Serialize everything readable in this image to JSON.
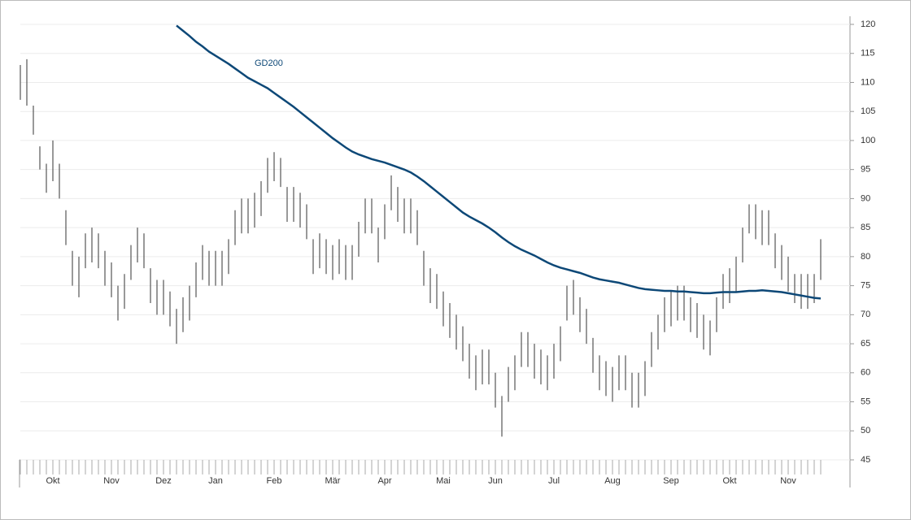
{
  "chart_data": {
    "type": "ohlc",
    "categories": [
      null,
      null,
      null,
      null,
      null,
      "Okt",
      null,
      null,
      null,
      null,
      null,
      null,
      null,
      null,
      "Nov",
      null,
      null,
      null,
      null,
      null,
      null,
      null,
      "Dez",
      null,
      null,
      null,
      null,
      null,
      null,
      null,
      "Jan",
      null,
      null,
      null,
      null,
      null,
      null,
      null,
      null,
      "Feb",
      null,
      null,
      null,
      null,
      null,
      null,
      null,
      null,
      "Mär",
      null,
      null,
      null,
      null,
      null,
      null,
      null,
      "Apr",
      null,
      null,
      null,
      null,
      null,
      null,
      null,
      null,
      "Mai",
      null,
      null,
      null,
      null,
      null,
      null,
      null,
      "Jun",
      null,
      null,
      null,
      null,
      null,
      null,
      null,
      null,
      "Jul",
      null,
      null,
      null,
      null,
      null,
      null,
      null,
      null,
      "Aug",
      null,
      null,
      null,
      null,
      null,
      null,
      null,
      null,
      "Sep",
      null,
      null,
      null,
      null,
      null,
      null,
      null,
      null,
      "Okt",
      null,
      null,
      null,
      null,
      null,
      null,
      null,
      null,
      "Nov",
      null,
      null,
      null,
      null,
      null
    ],
    "series": [
      {
        "color": "#333333",
        "high": [
          113,
          114,
          106,
          99,
          96,
          100,
          96,
          88,
          81,
          80,
          84,
          85,
          84,
          81,
          79,
          75,
          77,
          82,
          85,
          84,
          78,
          76,
          76,
          74,
          71,
          73,
          75,
          79,
          82,
          81,
          81,
          81,
          83,
          88,
          90,
          90,
          91,
          93,
          97,
          98,
          97,
          92,
          92,
          91,
          89,
          83,
          84,
          83,
          82,
          83,
          82,
          82,
          86,
          90,
          90,
          85,
          89,
          94,
          92,
          90,
          90,
          88,
          81,
          78,
          77,
          74,
          72,
          70,
          68,
          65,
          63,
          64,
          64,
          60,
          56,
          61,
          63,
          67,
          67,
          65,
          64,
          63,
          65,
          68,
          75,
          76,
          73,
          71,
          66,
          63,
          62,
          61,
          63,
          63,
          60,
          60,
          62,
          67,
          70,
          73,
          74,
          75,
          75,
          73,
          72,
          70,
          69,
          73,
          77,
          78,
          80,
          85,
          89,
          89,
          88,
          88,
          84,
          82,
          80,
          77,
          77,
          77,
          77,
          83
        ],
        "low": [
          107,
          106,
          101,
          95,
          91,
          93,
          90,
          82,
          75,
          73,
          78,
          79,
          78,
          75,
          73,
          69,
          71,
          76,
          79,
          78,
          72,
          70,
          70,
          68,
          65,
          67,
          69,
          73,
          76,
          75,
          75,
          75,
          77,
          82,
          84,
          84,
          85,
          87,
          91,
          93,
          92,
          86,
          86,
          85,
          83,
          77,
          78,
          77,
          76,
          77,
          76,
          76,
          80,
          84,
          84,
          79,
          83,
          88,
          86,
          84,
          84,
          82,
          75,
          72,
          71,
          68,
          66,
          64,
          62,
          59,
          57,
          58,
          58,
          54,
          49,
          55,
          57,
          61,
          61,
          59,
          58,
          57,
          59,
          62,
          69,
          70,
          67,
          65,
          60,
          57,
          56,
          55,
          57,
          57,
          54,
          54,
          56,
          61,
          64,
          67,
          68,
          69,
          69,
          67,
          66,
          64,
          63,
          67,
          71,
          72,
          74,
          79,
          84,
          83,
          82,
          82,
          78,
          76,
          74,
          72,
          71,
          71,
          72,
          76
        ]
      },
      {
        "name": "GD200",
        "color": "#0d4877",
        "values": [
          null,
          null,
          null,
          null,
          null,
          null,
          null,
          null,
          null,
          null,
          null,
          null,
          null,
          null,
          null,
          null,
          null,
          null,
          null,
          null,
          null,
          null,
          null,
          null,
          119.8,
          118.9,
          118,
          117,
          116.2,
          115.3,
          114.6,
          113.9,
          113.2,
          112.4,
          111.6,
          110.8,
          110.2,
          109.6,
          109,
          108.2,
          107.4,
          106.6,
          105.8,
          104.9,
          104,
          103.1,
          102.2,
          101.3,
          100.4,
          99.6,
          98.8,
          98.1,
          97.6,
          97.2,
          96.8,
          96.5,
          96.2,
          95.8,
          95.4,
          95,
          94.5,
          93.8,
          93,
          92.1,
          91.2,
          90.3,
          89.4,
          88.5,
          87.6,
          86.9,
          86.3,
          85.7,
          85,
          84.2,
          83.3,
          82.5,
          81.8,
          81.2,
          80.7,
          80.2,
          79.6,
          79,
          78.5,
          78.1,
          77.8,
          77.5,
          77.2,
          76.8,
          76.4,
          76.1,
          75.9,
          75.7,
          75.5,
          75.2,
          74.9,
          74.6,
          74.4,
          74.3,
          74.2,
          74.1,
          74.1,
          74,
          74,
          73.9,
          73.8,
          73.7,
          73.7,
          73.8,
          73.9,
          73.9,
          73.9,
          74,
          74.1,
          74.1,
          74.2,
          74.1,
          74,
          73.9,
          73.7,
          73.5,
          73.3,
          73.1,
          72.9,
          72.8
        ]
      }
    ],
    "ylim": [
      45,
      120
    ],
    "yticks": [
      45,
      50,
      55,
      60,
      65,
      70,
      75,
      80,
      85,
      90,
      95,
      100,
      105,
      110,
      115,
      120
    ],
    "grid": true
  }
}
